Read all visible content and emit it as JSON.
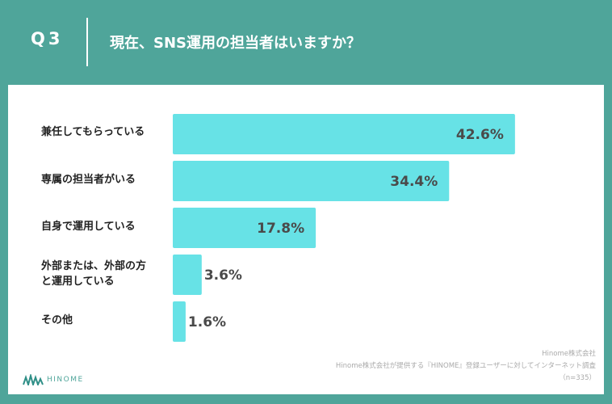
{
  "header": {
    "q_number": "Q3",
    "question": "現在、SNS運用の担当者はいますか？"
  },
  "colors": {
    "background": "#4fa59a",
    "bar": "#67e2e6",
    "value_text": "#4a4a4a"
  },
  "chart_data": {
    "type": "bar",
    "orientation": "horizontal",
    "title": "現在、SNS運用の担当者はいますか？",
    "categories": [
      "兼任してもらっている",
      "専属の担当者がいる",
      "自身で運用している",
      "外部または、外部の方と運用している",
      "その他"
    ],
    "values": [
      42.6,
      34.4,
      17.8,
      3.6,
      1.6
    ],
    "value_labels": [
      "42.6%",
      "34.4%",
      "17.8%",
      "3.6%",
      "1.6%"
    ],
    "xlim": [
      0,
      50
    ],
    "grid": false
  },
  "labels": {
    "c0": [
      "兼任してもらっている"
    ],
    "c1": [
      "専属の担当者がいる"
    ],
    "c2": [
      "自身で運用している"
    ],
    "c3": [
      "外部または、外部の方",
      "と運用している"
    ],
    "c4": [
      "その他"
    ]
  },
  "footer": {
    "company": "Hinome株式会社",
    "source": "Hinome株式会社が提供する『HINOME』登録ユーザーに対してインターネット調査",
    "sample": "（n=335）"
  },
  "logo": {
    "text": "HINOME",
    "icon": "hinome-logo-icon"
  }
}
